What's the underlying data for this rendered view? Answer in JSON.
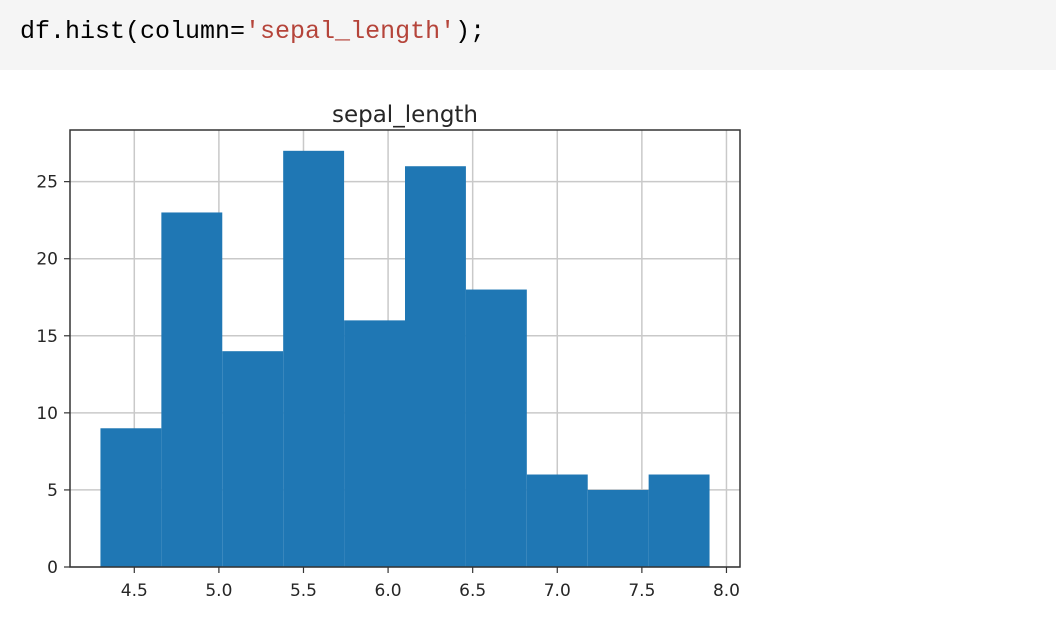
{
  "code_cell": {
    "prefix": "df.hist(column=",
    "string_arg": "'sepal_length'",
    "suffix": ");"
  },
  "chart_data": {
    "type": "bar",
    "title": "sepal_length",
    "xlabel": "",
    "ylabel": "",
    "bin_edges": [
      4.3,
      4.66,
      5.02,
      5.38,
      5.74,
      6.1,
      6.46,
      6.82,
      7.18,
      7.54,
      7.9
    ],
    "values": [
      9,
      23,
      14,
      27,
      16,
      26,
      18,
      6,
      5,
      6
    ],
    "xlim": [
      4.12,
      8.08
    ],
    "ylim": [
      0,
      28.35
    ],
    "x_ticks": [
      4.5,
      5.0,
      5.5,
      6.0,
      6.5,
      7.0,
      7.5,
      8.0
    ],
    "x_tick_labels": [
      "4.5",
      "5.0",
      "5.5",
      "6.0",
      "6.5",
      "7.0",
      "7.5",
      "8.0"
    ],
    "y_ticks": [
      0,
      5,
      10,
      15,
      20,
      25
    ],
    "y_tick_labels": [
      "0",
      "5",
      "10",
      "15",
      "20",
      "25"
    ],
    "grid": true,
    "bar_color": "#1f77b4"
  }
}
